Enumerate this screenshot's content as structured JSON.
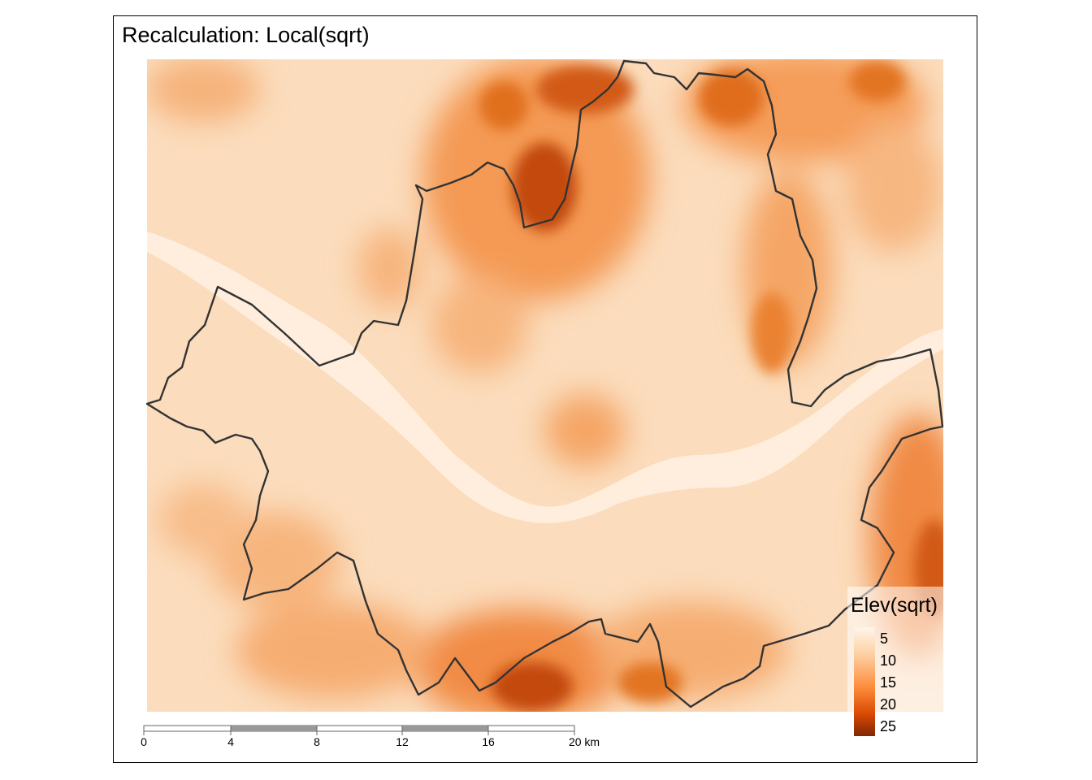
{
  "map": {
    "title": "Recalculation: Local(sqrt)"
  },
  "legend": {
    "title": "Elev(sqrt)",
    "min": 1,
    "max": 26,
    "entries": [
      {
        "label": "5",
        "value": 5
      },
      {
        "label": "10",
        "value": 10
      },
      {
        "label": "15",
        "value": 15
      },
      {
        "label": "20",
        "value": 20
      },
      {
        "label": "25",
        "value": 25
      }
    ],
    "colors": [
      "#fff5eb",
      "#fdd0a2",
      "#fd8d3c",
      "#d94801",
      "#7f2704"
    ]
  },
  "scale_bar": {
    "ticks": [
      "0",
      "4",
      "8",
      "12",
      "16",
      "20 km"
    ]
  },
  "colors": {
    "river": "#fff0e1",
    "boundary": "#333333",
    "high_elevation": "#a33a05"
  }
}
